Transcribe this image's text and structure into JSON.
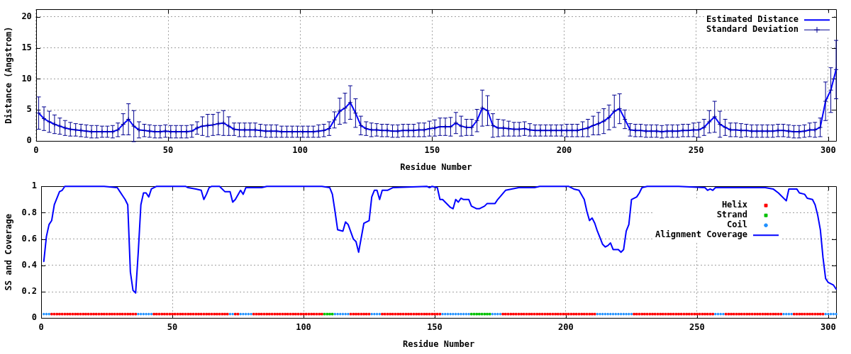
{
  "chart_data": [
    {
      "type": "line",
      "xlabel": "Residue Number",
      "ylabel": "Distance (Angstrom)",
      "xlim": [
        0,
        303
      ],
      "xticks": [
        0,
        50,
        100,
        150,
        200,
        250,
        300
      ],
      "ylim": [
        0,
        21.2
      ],
      "yticks": [
        0,
        5,
        10,
        15,
        20
      ],
      "grid": true,
      "legend": "top right",
      "x": [
        1,
        3,
        5,
        7,
        9,
        11,
        13,
        15,
        17,
        19,
        21,
        23,
        25,
        27,
        29,
        31,
        33,
        35,
        37,
        39,
        41,
        43,
        45,
        47,
        49,
        51,
        53,
        55,
        57,
        59,
        61,
        63,
        65,
        67,
        69,
        71,
        73,
        75,
        77,
        79,
        81,
        83,
        85,
        87,
        89,
        91,
        93,
        95,
        97,
        99,
        101,
        103,
        105,
        107,
        109,
        111,
        113,
        115,
        117,
        119,
        121,
        123,
        125,
        127,
        129,
        131,
        133,
        135,
        137,
        139,
        141,
        143,
        145,
        147,
        149,
        151,
        153,
        155,
        157,
        159,
        161,
        163,
        165,
        167,
        169,
        171,
        173,
        175,
        177,
        179,
        181,
        183,
        185,
        187,
        189,
        191,
        193,
        195,
        197,
        199,
        201,
        203,
        205,
        207,
        209,
        211,
        213,
        215,
        217,
        219,
        221,
        223,
        225,
        227,
        229,
        231,
        233,
        235,
        237,
        239,
        241,
        243,
        245,
        247,
        249,
        251,
        253,
        255,
        257,
        259,
        261,
        263,
        265,
        267,
        269,
        271,
        273,
        275,
        277,
        279,
        281,
        283,
        285,
        287,
        289,
        291,
        293,
        295,
        297,
        299,
        301,
        303
      ],
      "series": [
        {
          "name": "Estimated Distance",
          "type": "line",
          "color": "#0000ff",
          "values": [
            4.5,
            3.6,
            3.1,
            2.7,
            2.4,
            2.1,
            1.9,
            1.8,
            1.7,
            1.6,
            1.5,
            1.5,
            1.5,
            1.5,
            1.5,
            1.8,
            2.7,
            3.5,
            2.4,
            1.8,
            1.7,
            1.6,
            1.5,
            1.5,
            1.6,
            1.5,
            1.5,
            1.5,
            1.5,
            1.6,
            2.1,
            2.4,
            2.5,
            2.6,
            2.8,
            2.9,
            2.4,
            1.9,
            1.8,
            1.8,
            1.8,
            1.8,
            1.7,
            1.6,
            1.6,
            1.6,
            1.5,
            1.5,
            1.5,
            1.5,
            1.5,
            1.5,
            1.5,
            1.6,
            1.7,
            2.0,
            3.4,
            4.8,
            5.3,
            6.2,
            4.5,
            2.5,
            2.0,
            1.8,
            1.8,
            1.7,
            1.7,
            1.6,
            1.6,
            1.7,
            1.7,
            1.7,
            1.8,
            1.8,
            2.0,
            2.1,
            2.3,
            2.3,
            2.3,
            2.9,
            2.4,
            2.2,
            2.2,
            3.3,
            5.3,
            4.9,
            2.5,
            2.1,
            2.1,
            2.0,
            1.9,
            1.9,
            2.0,
            1.8,
            1.7,
            1.7,
            1.7,
            1.7,
            1.7,
            1.7,
            1.7,
            1.7,
            1.7,
            1.9,
            2.1,
            2.5,
            2.8,
            3.2,
            3.8,
            4.8,
            5.2,
            3.5,
            1.8,
            1.7,
            1.7,
            1.6,
            1.6,
            1.6,
            1.5,
            1.6,
            1.6,
            1.6,
            1.7,
            1.7,
            1.8,
            1.8,
            2.2,
            3.1,
            3.9,
            2.7,
            2.2,
            1.8,
            1.8,
            1.7,
            1.7,
            1.6,
            1.6,
            1.6,
            1.6,
            1.6,
            1.7,
            1.7,
            1.6,
            1.5,
            1.5,
            1.6,
            1.8,
            1.8,
            2.2,
            6.4,
            8.2,
            11.5
          ]
        },
        {
          "name": "Standard Deviation",
          "type": "scatter",
          "marker": "cross",
          "color": "#000090",
          "values": [
            4.5,
            3.6,
            3.1,
            2.7,
            2.4,
            2.1,
            1.9,
            1.8,
            1.7,
            1.6,
            1.5,
            1.5,
            1.5,
            1.5,
            1.5,
            1.8,
            2.7,
            3.5,
            2.4,
            1.8,
            1.7,
            1.6,
            1.5,
            1.5,
            1.6,
            1.5,
            1.5,
            1.5,
            1.5,
            1.6,
            2.1,
            2.4,
            2.5,
            2.6,
            2.8,
            2.9,
            2.4,
            1.9,
            1.8,
            1.8,
            1.8,
            1.8,
            1.7,
            1.6,
            1.6,
            1.6,
            1.5,
            1.5,
            1.5,
            1.5,
            1.5,
            1.5,
            1.5,
            1.6,
            1.7,
            2.0,
            3.4,
            4.8,
            5.3,
            6.2,
            4.5,
            2.5,
            2.0,
            1.8,
            1.8,
            1.7,
            1.7,
            1.6,
            1.6,
            1.7,
            1.7,
            1.7,
            1.8,
            1.8,
            2.0,
            2.1,
            2.3,
            2.3,
            2.3,
            2.9,
            2.4,
            2.2,
            2.2,
            3.3,
            5.3,
            4.9,
            2.5,
            2.1,
            2.1,
            2.0,
            1.9,
            1.9,
            2.0,
            1.8,
            1.7,
            1.7,
            1.7,
            1.7,
            1.7,
            1.7,
            1.7,
            1.7,
            1.7,
            1.9,
            2.1,
            2.5,
            2.8,
            3.2,
            3.8,
            4.8,
            5.2,
            3.5,
            1.8,
            1.7,
            1.7,
            1.6,
            1.6,
            1.6,
            1.5,
            1.6,
            1.6,
            1.6,
            1.7,
            1.7,
            1.8,
            1.8,
            2.2,
            3.1,
            3.9,
            2.7,
            2.2,
            1.8,
            1.8,
            1.7,
            1.7,
            1.6,
            1.6,
            1.6,
            1.6,
            1.6,
            1.7,
            1.7,
            1.6,
            1.5,
            1.5,
            1.6,
            1.8,
            1.8,
            2.2,
            6.4,
            8.2,
            11.5
          ],
          "errors": [
            2.6,
            1.9,
            1.7,
            1.5,
            1.3,
            1.2,
            1.1,
            1.0,
            1.0,
            1.0,
            1.0,
            1.0,
            0.9,
            0.9,
            1.0,
            1.1,
            1.7,
            2.5,
            2.5,
            1.3,
            1.0,
            1.0,
            1.0,
            1.0,
            1.0,
            1.0,
            1.0,
            1.0,
            1.0,
            1.0,
            1.0,
            1.5,
            1.8,
            1.7,
            1.8,
            2.0,
            1.5,
            1.0,
            1.1,
            1.1,
            1.1,
            1.1,
            1.0,
            1.0,
            1.0,
            1.0,
            0.9,
            0.9,
            0.9,
            0.9,
            0.9,
            0.9,
            0.9,
            1.0,
            1.0,
            1.1,
            1.3,
            2.1,
            2.4,
            2.7,
            2.3,
            1.5,
            1.1,
            1.1,
            1.0,
            1.0,
            1.0,
            1.0,
            1.0,
            1.0,
            1.0,
            1.0,
            1.1,
            1.1,
            1.2,
            1.3,
            1.4,
            1.4,
            1.5,
            1.7,
            1.6,
            1.3,
            1.3,
            1.8,
            2.9,
            2.4,
            1.9,
            1.4,
            1.3,
            1.2,
            1.1,
            1.1,
            1.1,
            1.0,
            0.9,
            0.9,
            0.9,
            0.9,
            0.9,
            0.9,
            1.0,
            1.0,
            1.0,
            1.2,
            1.4,
            1.5,
            1.8,
            2.0,
            2.0,
            2.6,
            2.4,
            1.5,
            1.0,
            1.0,
            1.0,
            1.0,
            1.0,
            1.0,
            1.0,
            1.0,
            1.0,
            1.0,
            1.0,
            1.0,
            1.1,
            1.2,
            1.3,
            1.8,
            2.5,
            2.1,
            1.3,
            1.1,
            1.1,
            1.1,
            1.0,
            1.0,
            1.0,
            1.0,
            1.0,
            1.0,
            1.0,
            1.0,
            1.0,
            1.0,
            1.0,
            1.0,
            1.1,
            1.2,
            1.5,
            3.1,
            3.6,
            4.7
          ]
        }
      ]
    },
    {
      "type": "line",
      "xlabel": "Residue Number",
      "ylabel": "SS and Coverage",
      "xlim": [
        0,
        303
      ],
      "xticks": [
        0,
        50,
        100,
        150,
        200,
        250,
        300
      ],
      "ylim": [
        0,
        1
      ],
      "yticks": [
        0,
        0.2,
        0.4,
        0.6,
        0.8,
        1
      ],
      "grid": true,
      "legend": "top right",
      "series": [
        {
          "name": "Helix",
          "type": "scatter",
          "marker": "square",
          "color": "#ff0000",
          "x": [
            4,
            5,
            6,
            7,
            8,
            9,
            10,
            11,
            12,
            13,
            14,
            15,
            16,
            17,
            18,
            19,
            20,
            21,
            22,
            23,
            24,
            25,
            26,
            27,
            28,
            29,
            30,
            31,
            32,
            33,
            34,
            35,
            36,
            43,
            44,
            45,
            46,
            47,
            48,
            49,
            50,
            51,
            52,
            53,
            54,
            55,
            56,
            57,
            58,
            59,
            60,
            61,
            62,
            63,
            64,
            65,
            66,
            67,
            68,
            69,
            70,
            71,
            74,
            75,
            81,
            82,
            83,
            84,
            85,
            86,
            87,
            88,
            89,
            90,
            91,
            92,
            93,
            94,
            95,
            96,
            97,
            98,
            99,
            100,
            101,
            102,
            103,
            104,
            105,
            106,
            107,
            118,
            119,
            120,
            121,
            122,
            123,
            124,
            125,
            130,
            131,
            132,
            133,
            134,
            135,
            136,
            137,
            138,
            139,
            140,
            141,
            142,
            143,
            144,
            145,
            146,
            147,
            148,
            149,
            150,
            151,
            152,
            176,
            177,
            178,
            179,
            180,
            181,
            182,
            183,
            184,
            185,
            186,
            187,
            188,
            189,
            190,
            191,
            192,
            193,
            194,
            195,
            196,
            197,
            198,
            199,
            200,
            201,
            202,
            203,
            204,
            205,
            206,
            207,
            208,
            209,
            210,
            211,
            226,
            227,
            228,
            229,
            230,
            231,
            232,
            233,
            234,
            235,
            236,
            237,
            238,
            239,
            240,
            241,
            242,
            243,
            244,
            245,
            246,
            247,
            248,
            249,
            250,
            251,
            252,
            253,
            254,
            255,
            256,
            261,
            262,
            263,
            264,
            265,
            266,
            267,
            268,
            269,
            270,
            271,
            272,
            273,
            274,
            275,
            276,
            277,
            278,
            279,
            280,
            281,
            282,
            287,
            288,
            289,
            290,
            291,
            292,
            293,
            294,
            295,
            296,
            297,
            298
          ],
          "values": [
            0.03,
            0.03,
            0.03,
            0.03,
            0.03,
            0.03,
            0.03,
            0.03,
            0.03,
            0.03,
            0.03,
            0.03,
            0.03,
            0.03,
            0.03,
            0.03,
            0.03,
            0.03,
            0.03,
            0.03,
            0.03,
            0.03,
            0.03,
            0.03,
            0.03,
            0.03,
            0.03,
            0.03,
            0.03,
            0.03,
            0.03,
            0.03,
            0.03,
            0.03,
            0.03,
            0.03,
            0.03,
            0.03,
            0.03,
            0.03,
            0.03,
            0.03,
            0.03,
            0.03,
            0.03,
            0.03,
            0.03,
            0.03,
            0.03,
            0.03,
            0.03,
            0.03,
            0.03,
            0.03,
            0.03,
            0.03,
            0.03,
            0.03,
            0.03,
            0.03,
            0.03,
            0.03,
            0.03,
            0.03,
            0.03,
            0.03,
            0.03,
            0.03,
            0.03,
            0.03,
            0.03,
            0.03,
            0.03,
            0.03,
            0.03,
            0.03,
            0.03,
            0.03,
            0.03,
            0.03,
            0.03,
            0.03,
            0.03,
            0.03,
            0.03,
            0.03,
            0.03,
            0.03,
            0.03,
            0.03,
            0.03,
            0.03,
            0.03,
            0.03,
            0.03,
            0.03,
            0.03,
            0.03,
            0.03,
            0.03,
            0.03,
            0.03,
            0.03,
            0.03,
            0.03,
            0.03,
            0.03,
            0.03,
            0.03,
            0.03,
            0.03,
            0.03,
            0.03,
            0.03,
            0.03,
            0.03,
            0.03,
            0.03,
            0.03,
            0.03,
            0.03,
            0.03,
            0.03,
            0.03,
            0.03,
            0.03,
            0.03,
            0.03,
            0.03,
            0.03,
            0.03,
            0.03,
            0.03,
            0.03,
            0.03,
            0.03,
            0.03,
            0.03,
            0.03,
            0.03,
            0.03,
            0.03,
            0.03,
            0.03,
            0.03,
            0.03,
            0.03,
            0.03,
            0.03,
            0.03,
            0.03,
            0.03,
            0.03,
            0.03,
            0.03,
            0.03,
            0.03,
            0.03,
            0.03,
            0.03,
            0.03,
            0.03,
            0.03,
            0.03,
            0.03,
            0.03,
            0.03,
            0.03,
            0.03,
            0.03,
            0.03,
            0.03,
            0.03,
            0.03,
            0.03,
            0.03,
            0.03,
            0.03,
            0.03,
            0.03,
            0.03,
            0.03,
            0.03,
            0.03,
            0.03,
            0.03,
            0.03,
            0.03,
            0.03,
            0.03,
            0.03,
            0.03,
            0.03,
            0.03,
            0.03,
            0.03,
            0.03,
            0.03,
            0.03,
            0.03,
            0.03,
            0.03,
            0.03,
            0.03,
            0.03,
            0.03,
            0.03,
            0.03,
            0.03,
            0.03,
            0.03,
            0.03,
            0.03,
            0.03,
            0.03,
            0.03,
            0.03,
            0.03,
            0.03,
            0.03,
            0.03,
            0.03,
            0.03
          ]
        },
        {
          "name": "Strand",
          "type": "scatter",
          "marker": "square",
          "color": "#00c000",
          "x": [
            108,
            109,
            110,
            111,
            164,
            165,
            166,
            167,
            168,
            169,
            170,
            171
          ],
          "values": [
            0.03,
            0.03,
            0.03,
            0.03,
            0.03,
            0.03,
            0.03,
            0.03,
            0.03,
            0.03,
            0.03,
            0.03
          ]
        },
        {
          "name": "Coil",
          "type": "scatter",
          "marker": "circle",
          "color": "#1e90ff",
          "x": [
            1,
            2,
            3,
            37,
            38,
            39,
            40,
            41,
            42,
            72,
            73,
            76,
            77,
            78,
            79,
            80,
            112,
            113,
            114,
            115,
            116,
            117,
            126,
            127,
            128,
            129,
            153,
            154,
            155,
            156,
            157,
            158,
            159,
            160,
            161,
            162,
            163,
            172,
            173,
            174,
            175,
            212,
            213,
            214,
            215,
            216,
            217,
            218,
            219,
            220,
            221,
            222,
            223,
            224,
            225,
            257,
            258,
            259,
            260,
            283,
            284,
            285,
            286,
            299,
            300,
            301,
            302,
            303
          ],
          "values": [
            0.03,
            0.03,
            0.03,
            0.03,
            0.03,
            0.03,
            0.03,
            0.03,
            0.03,
            0.03,
            0.03,
            0.03,
            0.03,
            0.03,
            0.03,
            0.03,
            0.03,
            0.03,
            0.03,
            0.03,
            0.03,
            0.03,
            0.03,
            0.03,
            0.03,
            0.03,
            0.03,
            0.03,
            0.03,
            0.03,
            0.03,
            0.03,
            0.03,
            0.03,
            0.03,
            0.03,
            0.03,
            0.03,
            0.03,
            0.03,
            0.03,
            0.03,
            0.03,
            0.03,
            0.03,
            0.03,
            0.03,
            0.03,
            0.03,
            0.03,
            0.03,
            0.03,
            0.03,
            0.03,
            0.03,
            0.03,
            0.03,
            0.03,
            0.03,
            0.03,
            0.03,
            0.03,
            0.03,
            0.03,
            0.03,
            0.03,
            0.03,
            0.03
          ]
        },
        {
          "name": "Alignment Coverage",
          "type": "line",
          "color": "#0000ff",
          "x": [
            1,
            2,
            3,
            4,
            5,
            6,
            7,
            8,
            9,
            17,
            24,
            29,
            30,
            31,
            32,
            33,
            34,
            35,
            36,
            37,
            38,
            39,
            40,
            41,
            42,
            44,
            55,
            56,
            59,
            61,
            62,
            63,
            64,
            65,
            68,
            70,
            72,
            73,
            74,
            76,
            77,
            78,
            84,
            86,
            107,
            110,
            111,
            112,
            113,
            115,
            116,
            117,
            119,
            120,
            121,
            122,
            123,
            125,
            126,
            127,
            128,
            129,
            130,
            132,
            134,
            147,
            148,
            149,
            151,
            152,
            153,
            156,
            157,
            158,
            159,
            160,
            161,
            163,
            164,
            166,
            167,
            169,
            170,
            173,
            174,
            177,
            182,
            188,
            190,
            201,
            203,
            205,
            207,
            208,
            209,
            210,
            211,
            212,
            213,
            214,
            215,
            216,
            217,
            218,
            220,
            221,
            222,
            223,
            224,
            225,
            227,
            228,
            229,
            231,
            243,
            253,
            254,
            255,
            256,
            257,
            260,
            276,
            279,
            281,
            284,
            285,
            288,
            289,
            291,
            292,
            294,
            295,
            296,
            297,
            298,
            299,
            300,
            302,
            303
          ],
          "values": [
            0.43,
            0.62,
            0.71,
            0.74,
            0.86,
            0.91,
            0.96,
            0.97,
            1,
            1,
            1,
            0.99,
            0.96,
            0.93,
            0.9,
            0.86,
            0.35,
            0.21,
            0.19,
            0.5,
            0.86,
            0.95,
            0.95,
            0.92,
            0.98,
            1,
            1,
            0.99,
            0.98,
            0.97,
            0.9,
            0.94,
            0.99,
            1,
            1,
            0.96,
            0.96,
            0.88,
            0.9,
            0.97,
            0.94,
            0.99,
            0.99,
            1,
            1,
            0.99,
            0.94,
            0.81,
            0.67,
            0.66,
            0.73,
            0.71,
            0.6,
            0.58,
            0.5,
            0.61,
            0.72,
            0.74,
            0.92,
            0.97,
            0.97,
            0.9,
            0.97,
            0.97,
            0.99,
            1,
            0.99,
            1,
            0.99,
            0.9,
            0.9,
            0.84,
            0.83,
            0.9,
            0.88,
            0.91,
            0.9,
            0.9,
            0.85,
            0.83,
            0.83,
            0.85,
            0.87,
            0.87,
            0.9,
            0.97,
            0.99,
            0.99,
            1,
            1,
            0.98,
            0.97,
            0.9,
            0.81,
            0.74,
            0.76,
            0.72,
            0.66,
            0.61,
            0.56,
            0.54,
            0.55,
            0.57,
            0.52,
            0.52,
            0.5,
            0.52,
            0.66,
            0.71,
            0.9,
            0.92,
            0.95,
            0.99,
            1,
            1,
            0.99,
            0.97,
            0.98,
            0.97,
            0.99,
            0.99,
            0.99,
            0.98,
            0.95,
            0.89,
            0.98,
            0.98,
            0.95,
            0.94,
            0.91,
            0.9,
            0.86,
            0.78,
            0.67,
            0.46,
            0.3,
            0.27,
            0.25,
            0.22
          ]
        }
      ]
    }
  ]
}
